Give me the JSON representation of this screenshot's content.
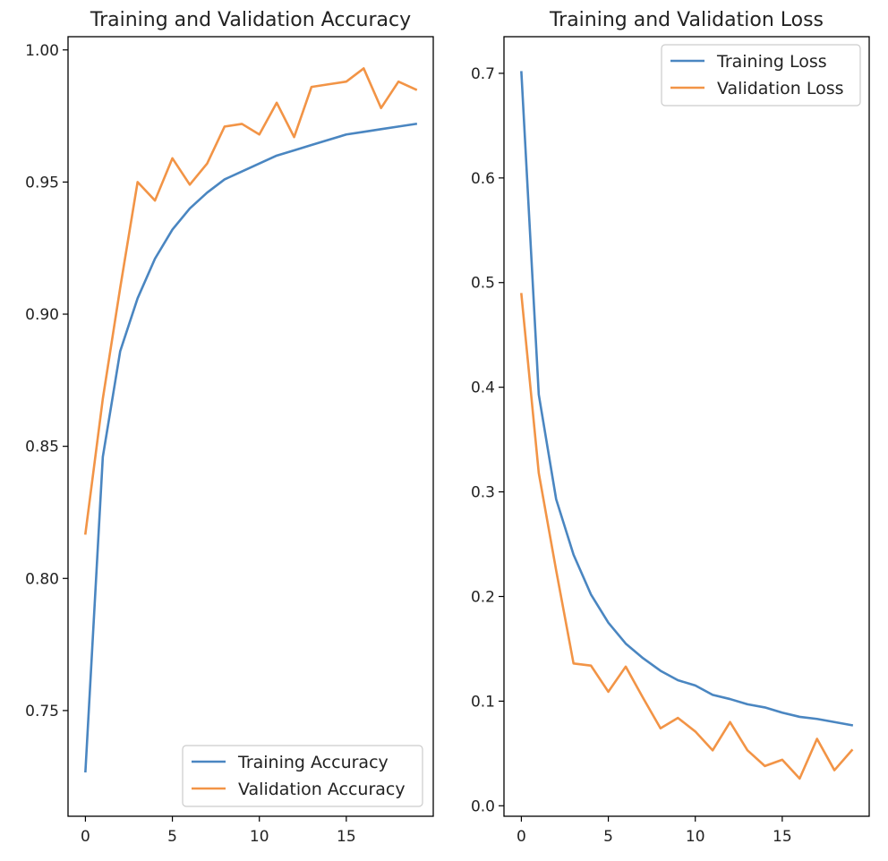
{
  "chart_data": [
    {
      "type": "line",
      "title": "Training and Validation Accuracy",
      "xlabel": "",
      "ylabel": "",
      "xlim": [
        -1,
        20
      ],
      "ylim": [
        0.71,
        1.005
      ],
      "xticks": [
        0,
        5,
        10,
        15
      ],
      "yticks": [
        0.75,
        0.8,
        0.85,
        0.9,
        0.95,
        1.0
      ],
      "ytick_labels": [
        "0.75",
        "0.80",
        "0.85",
        "0.90",
        "0.95",
        "1.00"
      ],
      "grid": false,
      "legend_position": "lower-right",
      "x": [
        0,
        1,
        2,
        3,
        4,
        5,
        6,
        7,
        8,
        9,
        10,
        11,
        12,
        13,
        14,
        15,
        16,
        17,
        18,
        19
      ],
      "series": [
        {
          "name": "Training Accuracy",
          "color": "#4a86c1",
          "values": [
            0.727,
            0.846,
            0.886,
            0.906,
            0.921,
            0.932,
            0.94,
            0.946,
            0.951,
            0.954,
            0.957,
            0.96,
            0.962,
            0.964,
            0.966,
            0.968,
            0.969,
            0.97,
            0.971,
            0.972
          ]
        },
        {
          "name": "Validation Accuracy",
          "color": "#f29446",
          "values": [
            0.817,
            0.868,
            0.91,
            0.95,
            0.943,
            0.959,
            0.949,
            0.957,
            0.971,
            0.972,
            0.968,
            0.98,
            0.967,
            0.986,
            0.987,
            0.988,
            0.993,
            0.978,
            0.988,
            0.985
          ]
        }
      ]
    },
    {
      "type": "line",
      "title": "Training and Validation Loss",
      "xlabel": "",
      "ylabel": "",
      "xlim": [
        -1,
        20
      ],
      "ylim": [
        -0.01,
        0.735
      ],
      "xticks": [
        0,
        5,
        10,
        15
      ],
      "yticks": [
        0.0,
        0.1,
        0.2,
        0.3,
        0.4,
        0.5,
        0.6,
        0.7
      ],
      "ytick_labels": [
        "0.0",
        "0.1",
        "0.2",
        "0.3",
        "0.4",
        "0.5",
        "0.6",
        "0.7"
      ],
      "grid": false,
      "legend_position": "upper-right",
      "x": [
        0,
        1,
        2,
        3,
        4,
        5,
        6,
        7,
        8,
        9,
        10,
        11,
        12,
        13,
        14,
        15,
        16,
        17,
        18,
        19
      ],
      "series": [
        {
          "name": "Training Loss",
          "color": "#4a86c1",
          "values": [
            0.701,
            0.393,
            0.293,
            0.24,
            0.202,
            0.175,
            0.155,
            0.141,
            0.129,
            0.12,
            0.115,
            0.106,
            0.102,
            0.097,
            0.094,
            0.089,
            0.085,
            0.083,
            0.08,
            0.077
          ]
        },
        {
          "name": "Validation Loss",
          "color": "#f29446",
          "values": [
            0.489,
            0.318,
            0.225,
            0.136,
            0.134,
            0.109,
            0.133,
            0.103,
            0.074,
            0.084,
            0.071,
            0.053,
            0.08,
            0.053,
            0.038,
            0.044,
            0.026,
            0.064,
            0.034,
            0.053
          ]
        }
      ]
    }
  ]
}
